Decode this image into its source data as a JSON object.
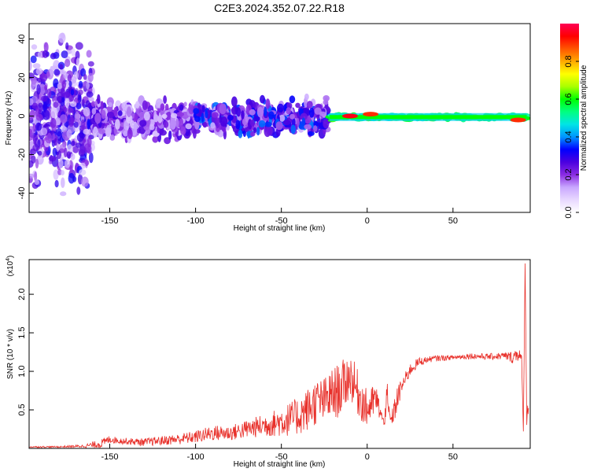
{
  "title": "C2E3.2024.352.07.22.R18",
  "chart_data": [
    {
      "type": "heatmap",
      "name": "spectrogram",
      "xlabel": "Height of straight line (km)",
      "ylabel": "Frequency (Hz)",
      "xlim": [
        -197,
        95
      ],
      "ylim": [
        -50,
        48
      ],
      "xticks": [
        -150,
        -100,
        -50,
        0,
        50
      ],
      "yticks": [
        -40,
        -20,
        0,
        20,
        40
      ],
      "colorbar": {
        "label": "Normalized spectral amplitude",
        "range": [
          0,
          1
        ],
        "ticks": [
          "0.0",
          "0.2",
          "0.4",
          "0.6",
          "0.8"
        ],
        "colormap": [
          "#ffffff",
          "#e8d8ff",
          "#c9a8ff",
          "#8a2be2",
          "#4b00e0",
          "#0000ff",
          "#0096ff",
          "#00e5e5",
          "#00ff80",
          "#00ff00",
          "#aaff00",
          "#ffff00",
          "#ffaa00",
          "#ff5500",
          "#ff0000",
          "#ff0055"
        ]
      },
      "segments": [
        {
          "x_range": [
            -197,
            -160
          ],
          "freq_center": 0,
          "freq_halfwidth": 48,
          "amplitude": 0.15,
          "description_free": true
        },
        {
          "x_range": [
            -160,
            -100
          ],
          "freq_center": -2,
          "freq_halfwidth": 12,
          "amplitude": 0.22
        },
        {
          "x_range": [
            -100,
            -22
          ],
          "freq_center": -1,
          "freq_halfwidth": 10,
          "amplitude": 0.3
        },
        {
          "x_range": [
            -22,
            93
          ],
          "freq_center": -0.5,
          "freq_halfwidth": 2,
          "amplitude": 0.55
        }
      ],
      "peaks": [
        {
          "x": -10,
          "freq": 0,
          "amplitude": 0.95
        },
        {
          "x": 2,
          "freq": 1,
          "amplitude": 0.9
        },
        {
          "x": 88,
          "freq": -2,
          "amplitude": 0.9
        }
      ]
    },
    {
      "type": "line",
      "name": "snr",
      "xlabel": "Height of straight line (km)",
      "ylabel": "SNR (10 * v/v)",
      "multiplier": "(x10",
      "multiplier_exp": "4",
      "multiplier_close": ")",
      "xlim": [
        -197,
        95
      ],
      "ylim": [
        0,
        2.45
      ],
      "xticks": [
        -150,
        -100,
        -50,
        0,
        50
      ],
      "yticks": [
        0.5,
        1.0,
        1.5,
        2.0
      ],
      "ytick_labels": [
        "0.5",
        "1.0",
        "1.5",
        "2.0"
      ],
      "color": "#e8302a",
      "series": [
        {
          "x": [
            -197,
            -180,
            -165,
            -155,
            -150,
            -145,
            -130,
            -120,
            -110,
            -100,
            -90,
            -80,
            -70,
            -60,
            -55,
            -50,
            -45,
            -40,
            -35,
            -30,
            -25,
            -20,
            -15,
            -10,
            -5,
            0,
            5,
            8,
            10,
            11,
            12,
            14,
            17,
            20,
            25,
            30,
            35,
            40,
            50,
            60,
            70,
            80,
            85,
            88,
            90,
            91,
            92,
            93,
            94
          ],
          "y": [
            0.02,
            0.02,
            0.03,
            0.06,
            0.12,
            0.1,
            0.08,
            0.1,
            0.12,
            0.15,
            0.2,
            0.2,
            0.25,
            0.3,
            0.32,
            0.35,
            0.38,
            0.42,
            0.5,
            0.6,
            0.62,
            0.7,
            0.78,
            0.95,
            0.7,
            0.5,
            0.65,
            0.45,
            0.3,
            0.9,
            0.5,
            0.35,
            0.6,
            0.8,
            1.02,
            1.12,
            1.15,
            1.17,
            1.18,
            1.2,
            1.19,
            1.2,
            1.18,
            1.25,
            1.15,
            0.22,
            2.4,
            0.4,
            0.55
          ],
          "noise": [
            0.01,
            0.01,
            0.02,
            0.06,
            0.05,
            0.04,
            0.05,
            0.06,
            0.07,
            0.08,
            0.1,
            0.1,
            0.12,
            0.15,
            0.17,
            0.2,
            0.22,
            0.25,
            0.28,
            0.3,
            0.3,
            0.35,
            0.35,
            0.3,
            0.3,
            0.25,
            0.2,
            0.1,
            0.05,
            0.5,
            0.15,
            0.08,
            0.2,
            0.1,
            0.08,
            0.06,
            0.04,
            0.04,
            0.03,
            0.04,
            0.04,
            0.05,
            0.08,
            0.12,
            0.05,
            0.0,
            0.0,
            0.1,
            0.1
          ]
        }
      ]
    }
  ]
}
